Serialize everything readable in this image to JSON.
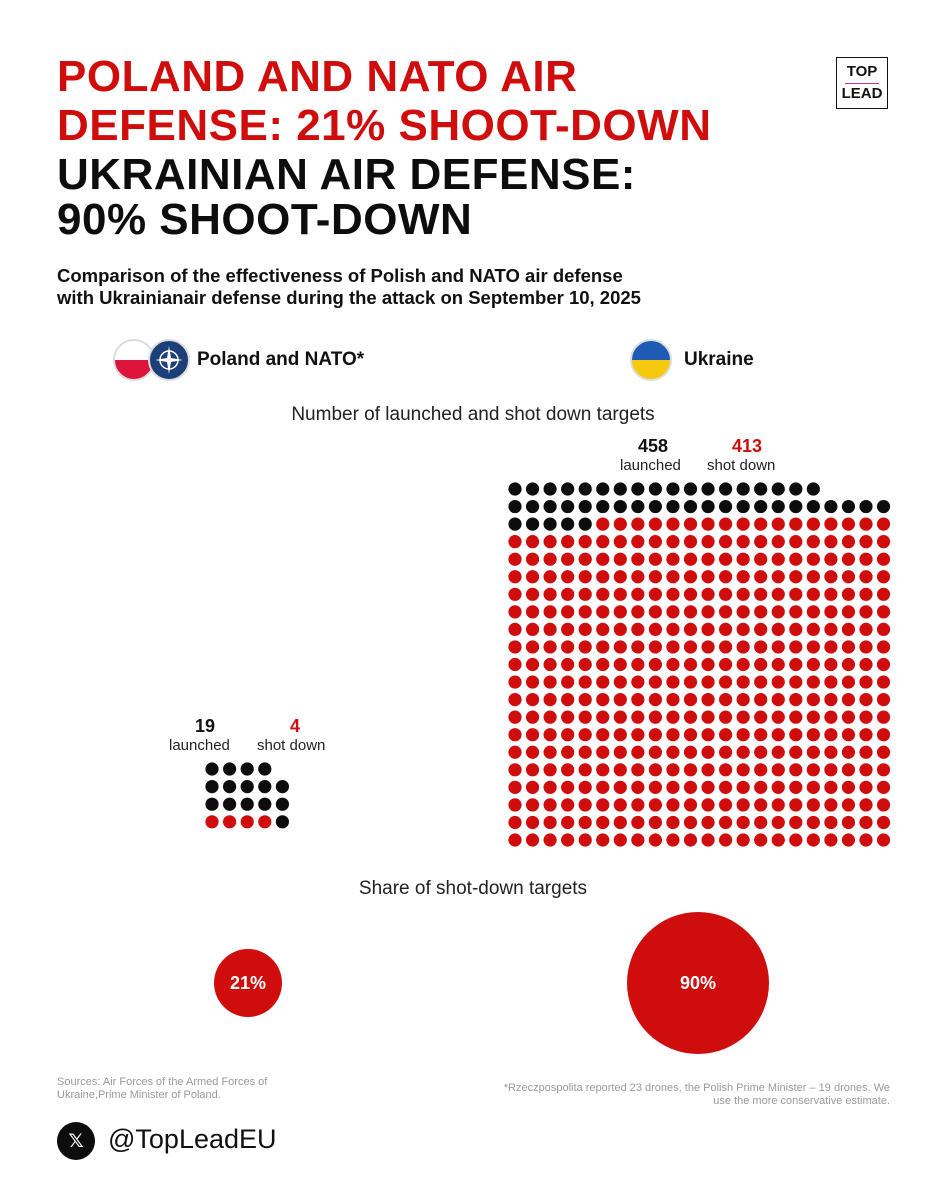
{
  "title": {
    "line1": "POLAND AND NATO AIR",
    "line2": "DEFENSE: 21% SHOOT-DOWN",
    "line3": "UKRAINIAN AIR DEFENSE:",
    "line4": "90% SHOOT-DOWN"
  },
  "logo": {
    "top": "TOP",
    "bottom": "LEAD"
  },
  "subtitle": {
    "line1": "Comparison of the effectiveness of Polish and NATO air defense",
    "line2": "with Ukrainianair defense during the attack on September 10, 2025"
  },
  "legend": {
    "poland_label": "Poland and NATO*",
    "ukraine_label": "Ukraine",
    "poland_icons": [
      "poland-flag-icon",
      "nato-flag-icon"
    ],
    "ukraine_icon": "ukraine-flag-icon"
  },
  "section1_title": "Number of launched and shot down targets",
  "section2_title": "Share of shot-down targets",
  "colors": {
    "red": "#d00d0d",
    "black": "#0d0d0d"
  },
  "chart_data": [
    {
      "type": "waffle",
      "title": "Number of launched and shot down targets",
      "categories": [
        "Poland and NATO*",
        "Ukraine"
      ],
      "series": [
        {
          "name": "launched",
          "values": [
            19,
            458
          ]
        },
        {
          "name": "shot down",
          "values": [
            4,
            413
          ]
        }
      ]
    },
    {
      "type": "pie",
      "title": "Share of shot-down targets",
      "categories": [
        "Poland and NATO*",
        "Ukraine"
      ],
      "values": [
        21,
        90
      ],
      "value_labels": [
        "21%",
        "90%"
      ]
    }
  ],
  "poland": {
    "launched": "19",
    "shot_down": "4",
    "launched_label": "launched",
    "shot_down_label": "shot down",
    "share": "21%"
  },
  "ukraine": {
    "launched": "458",
    "shot_down": "413",
    "launched_label": "launched",
    "shot_down_label": "shot down",
    "share": "90%"
  },
  "sources": "Sources: Air Forces of the Armed Forces of Ukraine,Prime Minister of Poland.",
  "footnote": "*Rzeczpospolita reported 23 drones, the Polish Prime Minister – 19 drones. We use the more conservative estimate.",
  "social": {
    "icon": "x-logo-icon",
    "glyph": "𝕏",
    "handle": "@TopLeadEU"
  }
}
